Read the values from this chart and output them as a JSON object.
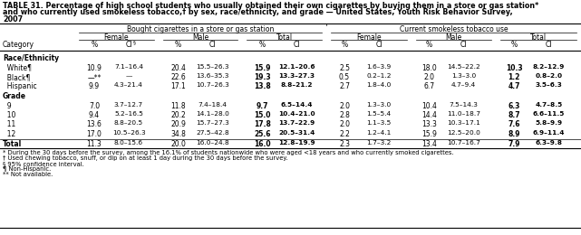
{
  "title_lines": [
    "TABLE 31. Percentage of high school students who usually obtained their own cigarettes by buying them in a store or gas station*",
    "and who currently used smokeless tobacco,† by sex, race/ethnicity, and grade — United States, Youth Risk Behavior Survey,",
    "2007"
  ],
  "col_group1": "Bought cigarettes in a store or gas station",
  "col_group2": "Current smokeless tobacco use",
  "sub_headers": [
    "Female",
    "Male",
    "Total",
    "Female",
    "Male",
    "Total"
  ],
  "sections": [
    {
      "section_label": "Race/Ethnicity",
      "rows": [
        {
          "label": "  White¶",
          "vals": [
            "10.9",
            "7.1–16.4",
            "20.4",
            "15.5–26.3",
            "15.9",
            "12.1–20.6",
            "2.5",
            "1.6–3.9",
            "18.0",
            "14.5–22.2",
            "10.3",
            "8.2–12.9"
          ]
        },
        {
          "label": "  Black¶",
          "vals": [
            "—**",
            "—",
            "22.6",
            "13.6–35.3",
            "19.3",
            "13.3–27.3",
            "0.5",
            "0.2–1.2",
            "2.0",
            "1.3–3.0",
            "1.2",
            "0.8–2.0"
          ]
        },
        {
          "label": "  Hispanic",
          "vals": [
            "9.9",
            "4.3–21.4",
            "17.1",
            "10.7–26.3",
            "13.8",
            "8.8–21.2",
            "2.7",
            "1.8–4.0",
            "6.7",
            "4.7–9.4",
            "4.7",
            "3.5–6.3"
          ]
        }
      ]
    },
    {
      "section_label": "Grade",
      "rows": [
        {
          "label": "  9",
          "vals": [
            "7.0",
            "3.7–12.7",
            "11.8",
            "7.4–18.4",
            "9.7",
            "6.5–14.4",
            "2.0",
            "1.3–3.0",
            "10.4",
            "7.5–14.3",
            "6.3",
            "4.7–8.5"
          ]
        },
        {
          "label": "  10",
          "vals": [
            "9.4",
            "5.2–16.5",
            "20.2",
            "14.1–28.0",
            "15.0",
            "10.4–21.0",
            "2.8",
            "1.5–5.4",
            "14.4",
            "11.0–18.7",
            "8.7",
            "6.6–11.5"
          ]
        },
        {
          "label": "  11",
          "vals": [
            "13.6",
            "8.8–20.5",
            "20.9",
            "15.7–27.3",
            "17.8",
            "13.7–22.9",
            "2.0",
            "1.1–3.5",
            "13.3",
            "10.3–17.1",
            "7.6",
            "5.8–9.9"
          ]
        },
        {
          "label": "  12",
          "vals": [
            "17.0",
            "10.5–26.3",
            "34.8",
            "27.5–42.8",
            "25.6",
            "20.5–31.4",
            "2.2",
            "1.2–4.1",
            "15.9",
            "12.5–20.0",
            "8.9",
            "6.9–11.4"
          ]
        }
      ]
    }
  ],
  "total_row": {
    "label": "Total",
    "vals": [
      "11.3",
      "8.0–15.6",
      "20.0",
      "16.0–24.8",
      "16.0",
      "12.8–19.9",
      "2.3",
      "1.7–3.2",
      "13.4",
      "10.7–16.7",
      "7.9",
      "6.3–9.8"
    ]
  },
  "footnotes": [
    "* During the 30 days before the survey, among the 16.1% of students nationwide who were aged <18 years and who currently smoked cigarettes.",
    "† Used chewing tobacco, snuff, or dip on at least 1 day during the 30 days before the survey.",
    "§ 95% confidence interval.",
    "¶ Non-Hispanic.",
    "** Not available."
  ]
}
